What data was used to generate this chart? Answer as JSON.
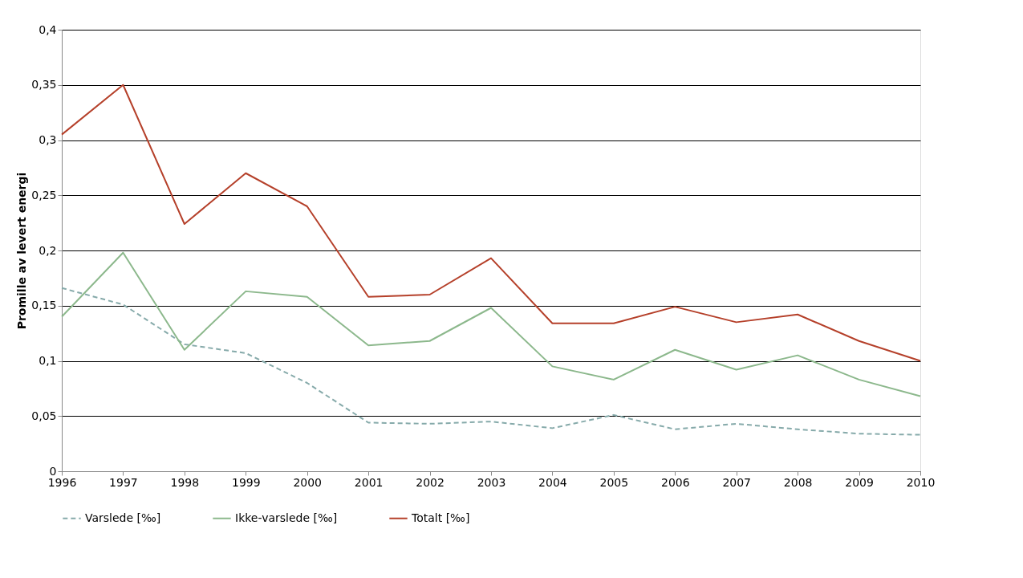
{
  "chart_data": {
    "type": "line",
    "ylabel": "Promille av levert energi",
    "x": [
      1996,
      1997,
      1998,
      1999,
      2000,
      2001,
      2002,
      2003,
      2004,
      2005,
      2006,
      2007,
      2008,
      2009,
      2010
    ],
    "series": [
      {
        "name": "Varslede [‰]",
        "color": "#86aaaa",
        "line_style": "dashed",
        "values": [
          0.166,
          0.151,
          0.115,
          0.107,
          0.08,
          0.044,
          0.043,
          0.045,
          0.039,
          0.051,
          0.038,
          0.043,
          0.038,
          0.034,
          0.033
        ]
      },
      {
        "name": "Ikke-varslede [‰]",
        "color": "#8cb88c",
        "line_style": "solid",
        "values": [
          0.14,
          0.198,
          0.11,
          0.163,
          0.158,
          0.114,
          0.118,
          0.148,
          0.095,
          0.083,
          0.11,
          0.092,
          0.105,
          0.083,
          0.068
        ]
      },
      {
        "name": "Totalt [‰]",
        "color": "#b5402a",
        "line_style": "solid",
        "values": [
          0.305,
          0.35,
          0.224,
          0.27,
          0.24,
          0.158,
          0.16,
          0.193,
          0.134,
          0.134,
          0.149,
          0.135,
          0.142,
          0.118,
          0.1
        ]
      }
    ],
    "xlim": [
      1996,
      2010
    ],
    "xticks": [
      1996,
      1997,
      1998,
      1999,
      2000,
      2001,
      2002,
      2003,
      2004,
      2005,
      2006,
      2007,
      2008,
      2009,
      2010
    ],
    "ylim": [
      0,
      0.4
    ],
    "yticks": [
      0,
      {
        "value": 0.05,
        "label": "0,05"
      },
      {
        "value": 0.1,
        "label": "0,1"
      },
      {
        "value": 0.15,
        "label": "0,15"
      },
      {
        "value": 0.2,
        "label": "0,2"
      },
      {
        "value": 0.25,
        "label": "0,25"
      },
      {
        "value": 0.3,
        "label": "0,3"
      },
      {
        "value": 0.35,
        "label": "0,35"
      },
      {
        "value": 0.4,
        "label": "0,4"
      }
    ],
    "grid": "y",
    "legend": "bottom",
    "marker": "none"
  }
}
